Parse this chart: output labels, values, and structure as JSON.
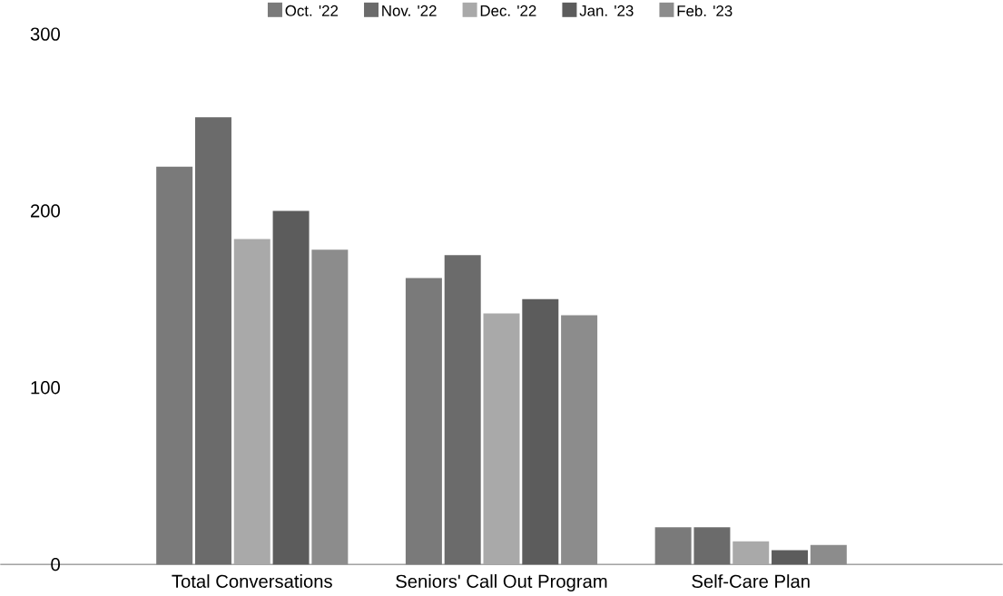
{
  "chart_data": {
    "type": "bar",
    "categories": [
      "Total Conversations",
      "Seniors' Call Out Program",
      "Self-Care Plan"
    ],
    "series": [
      {
        "name": "Oct. '22",
        "color": "#7a7a7a",
        "values": [
          225,
          162,
          21
        ]
      },
      {
        "name": "Nov. '22",
        "color": "#6b6b6b",
        "values": [
          253,
          175,
          21
        ]
      },
      {
        "name": "Dec. '22",
        "color": "#a9a9a9",
        "values": [
          184,
          142,
          13
        ]
      },
      {
        "name": "Jan. '23",
        "color": "#5c5c5c",
        "values": [
          200,
          150,
          8
        ]
      },
      {
        "name": "Feb. '23",
        "color": "#8c8c8c",
        "values": [
          178,
          141,
          11
        ]
      }
    ],
    "ylim": [
      0,
      300
    ],
    "yticks": [
      0,
      100,
      200,
      300
    ],
    "legend": "top"
  }
}
